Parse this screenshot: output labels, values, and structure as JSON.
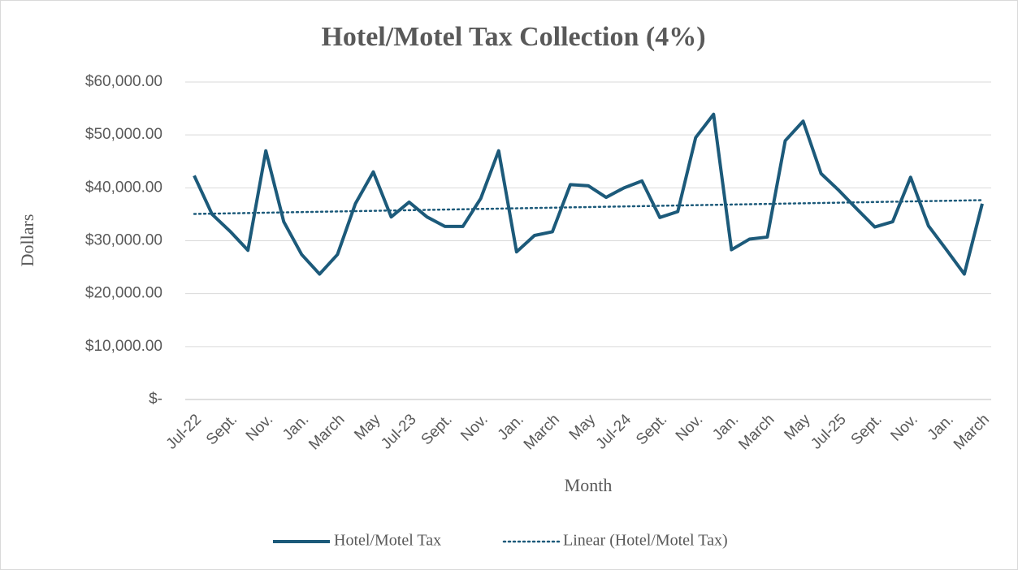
{
  "chart_data": {
    "type": "line",
    "title": "Hotel/Motel Tax Collection (4%)",
    "x_label": "Month",
    "y_label": "Dollars",
    "categories": [
      "Jul-22",
      null,
      "Sept.",
      null,
      "Nov.",
      null,
      "Jan.",
      null,
      "March",
      null,
      "May",
      null,
      "Jul-23",
      null,
      "Sept.",
      null,
      "Nov.",
      null,
      "Jan.",
      null,
      "March",
      null,
      "May",
      null,
      "Jul-24",
      null,
      "Sept.",
      null,
      "Nov.",
      null,
      "Jan.",
      null,
      "March",
      null,
      "May",
      null,
      "Jul-25",
      null,
      "Sept.",
      null,
      "Nov.",
      null,
      "Jan.",
      null,
      "March"
    ],
    "series": [
      {
        "name": "Hotel/Motel Tax",
        "color": "#1c5a7a",
        "values": [
          42300,
          35000,
          31800,
          28200,
          47000,
          33600,
          27400,
          23700,
          27400,
          37000,
          43000,
          34500,
          37300,
          34500,
          32700,
          32700,
          38000,
          47000,
          27900,
          31000,
          31700,
          40600,
          40400,
          38200,
          40000,
          41300,
          34400,
          35500,
          49500,
          53900,
          28300,
          30300,
          30700,
          48900,
          52600,
          42700,
          39500,
          36000,
          32600,
          33600,
          42000,
          32800,
          28300,
          23700,
          37000
        ]
      }
    ],
    "trendline": {
      "name": "Linear (Hotel/Motel Tax)",
      "color": "#1c5a7a"
    },
    "ylim": [
      0,
      60000
    ],
    "yticks": [
      {
        "value": 0,
        "label": "$-"
      },
      {
        "value": 10000,
        "label": "$10,000.00"
      },
      {
        "value": 20000,
        "label": "$20,000.00"
      },
      {
        "value": 30000,
        "label": "$30,000.00"
      },
      {
        "value": 40000,
        "label": "$40,000.00"
      },
      {
        "value": 50000,
        "label": "$50,000.00"
      },
      {
        "value": 60000,
        "label": "$60,000.00"
      }
    ],
    "grid": true,
    "legend": "bottom"
  }
}
